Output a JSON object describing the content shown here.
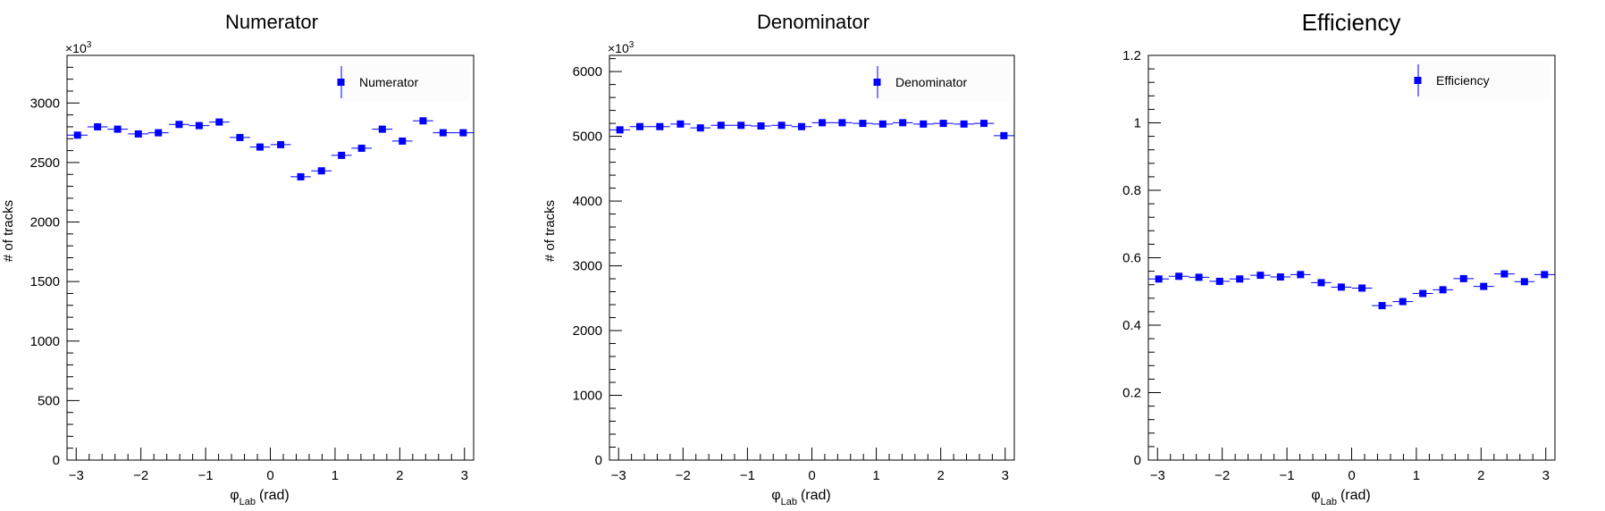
{
  "chart_data": [
    {
      "type": "scatter",
      "title": "Numerator",
      "xlabel_main": "φ",
      "xlabel_sub": "Lab",
      "xlabel_unit": "(rad)",
      "ylabel": "# of tracks",
      "exponent_base": "×10",
      "exponent_power": "3",
      "xlim": [
        -3.14159,
        3.14159
      ],
      "ylim": [
        0,
        3400
      ],
      "x_ticks": [
        -3,
        -2,
        -1,
        0,
        1,
        2,
        3
      ],
      "x_tick_labels": [
        "−3",
        "−2",
        "−1",
        "0",
        "1",
        "2",
        "3"
      ],
      "y_ticks": [
        0,
        500,
        1000,
        1500,
        2000,
        2500,
        3000
      ],
      "y_tick_labels": [
        "0",
        "500",
        "1000",
        "1500",
        "2000",
        "2500",
        "3000"
      ],
      "legend_position": "top-right",
      "series": [
        {
          "name": "Numerator",
          "color": "#0000ff",
          "marker": "square",
          "x": [
            -2.98,
            -2.67,
            -2.36,
            -2.04,
            -1.73,
            -1.41,
            -1.1,
            -0.79,
            -0.47,
            -0.16,
            0.16,
            0.47,
            0.79,
            1.1,
            1.41,
            1.73,
            2.04,
            2.36,
            2.67,
            2.98
          ],
          "y": [
            2730,
            2800,
            2780,
            2740,
            2750,
            2820,
            2810,
            2840,
            2710,
            2630,
            2650,
            2380,
            2430,
            2560,
            2620,
            2780,
            2680,
            2850,
            2750,
            2750
          ]
        }
      ]
    },
    {
      "type": "scatter",
      "title": "Denominator",
      "xlabel_main": "φ",
      "xlabel_sub": "Lab",
      "xlabel_unit": "(rad)",
      "ylabel": "# of tracks",
      "exponent_base": "×10",
      "exponent_power": "3",
      "xlim": [
        -3.14159,
        3.14159
      ],
      "ylim": [
        0,
        6250
      ],
      "x_ticks": [
        -3,
        -2,
        -1,
        0,
        1,
        2,
        3
      ],
      "x_tick_labels": [
        "−3",
        "−2",
        "−1",
        "0",
        "1",
        "2",
        "3"
      ],
      "y_ticks": [
        0,
        1000,
        2000,
        3000,
        4000,
        5000,
        6000
      ],
      "y_tick_labels": [
        "0",
        "1000",
        "2000",
        "3000",
        "4000",
        "5000",
        "6000"
      ],
      "legend_position": "top-right",
      "series": [
        {
          "name": "Denominator",
          "color": "#0000ff",
          "marker": "square",
          "x": [
            -2.98,
            -2.67,
            -2.36,
            -2.04,
            -1.73,
            -1.41,
            -1.1,
            -0.79,
            -0.47,
            -0.16,
            0.16,
            0.47,
            0.79,
            1.1,
            1.41,
            1.73,
            2.04,
            2.36,
            2.67,
            2.98
          ],
          "y": [
            5100,
            5150,
            5150,
            5190,
            5130,
            5170,
            5170,
            5160,
            5170,
            5150,
            5210,
            5210,
            5200,
            5190,
            5210,
            5190,
            5200,
            5190,
            5200,
            5010
          ]
        }
      ]
    },
    {
      "type": "scatter",
      "title": "Efficiency",
      "xlabel_main": "φ",
      "xlabel_sub": "Lab",
      "xlabel_unit": "(rad)",
      "xlim": [
        -3.14159,
        3.14159
      ],
      "ylim": [
        0,
        1.2
      ],
      "x_ticks": [
        -3,
        -2,
        -1,
        0,
        1,
        2,
        3
      ],
      "x_tick_labels": [
        "−3",
        "−2",
        "−1",
        "0",
        "1",
        "2",
        "3"
      ],
      "y_ticks": [
        0,
        0.2,
        0.4,
        0.6,
        0.8,
        1.0,
        1.2
      ],
      "y_tick_labels": [
        "0",
        "0.2",
        "0.4",
        "0.6",
        "0.8",
        "1",
        "1.2"
      ],
      "legend_position": "top-right",
      "series": [
        {
          "name": "Efficiency",
          "color": "#0000ff",
          "marker": "square",
          "x": [
            -2.98,
            -2.67,
            -2.36,
            -2.04,
            -1.73,
            -1.41,
            -1.1,
            -0.79,
            -0.47,
            -0.16,
            0.16,
            0.47,
            0.79,
            1.1,
            1.41,
            1.73,
            2.04,
            2.36,
            2.67,
            2.98
          ],
          "y": [
            0.537,
            0.545,
            0.542,
            0.53,
            0.537,
            0.548,
            0.543,
            0.55,
            0.526,
            0.513,
            0.51,
            0.458,
            0.47,
            0.494,
            0.505,
            0.538,
            0.515,
            0.552,
            0.529,
            0.55
          ]
        }
      ]
    }
  ]
}
